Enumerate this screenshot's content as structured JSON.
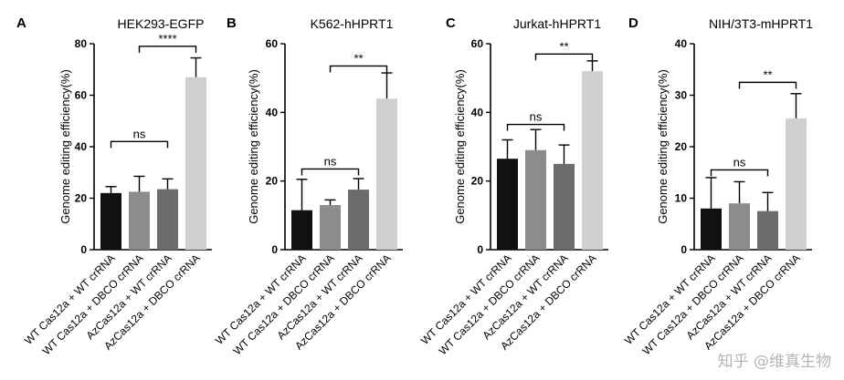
{
  "colors": {
    "wt_wt": "#111111",
    "wt_dbco": "#8c8c8c",
    "az_wt": "#6b6b6b",
    "az_dbco": "#cfcfcf"
  },
  "watermark": "知乎 @维真生物",
  "chart_data": [
    {
      "type": "bar",
      "panel_label": "A",
      "title": "HEK293-EGFP",
      "ylabel": "Genome editing efficiency(%)",
      "ylim": [
        0,
        80
      ],
      "yticks": [
        0,
        20,
        40,
        60,
        80
      ],
      "categories": [
        "WT Cas12a + WT crRNA",
        "WT Cas12a + DBCO crRNA",
        "AzCas12a + WT crRNA",
        "AzCas12a + DBCO crRNA"
      ],
      "values": [
        22,
        22.5,
        23.5,
        67
      ],
      "errors": [
        2.5,
        6,
        4,
        7.5
      ],
      "annotations": [
        {
          "from": 0,
          "to": 2,
          "y": 42,
          "text": "ns"
        },
        {
          "from": 1,
          "to": 3,
          "y": 79,
          "text": "****"
        }
      ]
    },
    {
      "type": "bar",
      "panel_label": "B",
      "title": "K562-hHPRT1",
      "ylabel": "Genome editing efficiency(%)",
      "ylim": [
        0,
        60
      ],
      "yticks": [
        0,
        20,
        40,
        60
      ],
      "categories": [
        "WT Cas12a + WT crRNA",
        "WT Cas12a + DBCO crRNA",
        "AzCas12a + WT crRNA",
        "AzCas12a + DBCO crRNA"
      ],
      "values": [
        11.5,
        13,
        17.5,
        44
      ],
      "errors": [
        9,
        1.5,
        3.2,
        7.5
      ],
      "annotations": [
        {
          "from": 0,
          "to": 2,
          "y": 23.5,
          "text": "ns"
        },
        {
          "from": 1,
          "to": 3,
          "y": 53.5,
          "text": "**"
        }
      ]
    },
    {
      "type": "bar",
      "panel_label": "C",
      "title": "Jurkat-hHPRT1",
      "ylabel": "Genome editing efficiency(%)",
      "ylim": [
        0,
        60
      ],
      "yticks": [
        0,
        20,
        40,
        60
      ],
      "categories": [
        "WT Cas12a + WT crRNA",
        "WT Cas12a + DBCO crRNA",
        "AzCas12a + WT crRNA",
        "AzCas12a + DBCO crRNA"
      ],
      "values": [
        26.5,
        29,
        25,
        52
      ],
      "errors": [
        5.5,
        6,
        5.5,
        3
      ],
      "annotations": [
        {
          "from": 0,
          "to": 2,
          "y": 36.5,
          "text": "ns"
        },
        {
          "from": 1,
          "to": 3,
          "y": 57,
          "text": "**"
        }
      ]
    },
    {
      "type": "bar",
      "panel_label": "D",
      "title": "NIH/3T3-mHPRT1",
      "ylabel": "Genome editing efficiency(%)",
      "ylim": [
        0,
        40
      ],
      "yticks": [
        0,
        10,
        20,
        30,
        40
      ],
      "categories": [
        "WT Cas12a + WT crRNA",
        "WT Cas12a + DBCO crRNA",
        "AzCas12a + WT crRNA",
        "AzCas12a + DBCO crRNA"
      ],
      "values": [
        8,
        9,
        7.5,
        25.5
      ],
      "errors": [
        6,
        4.2,
        3.6,
        4.8
      ],
      "annotations": [
        {
          "from": 0,
          "to": 2,
          "y": 15.5,
          "text": "ns"
        },
        {
          "from": 1,
          "to": 3,
          "y": 32.5,
          "text": "**"
        }
      ]
    }
  ]
}
